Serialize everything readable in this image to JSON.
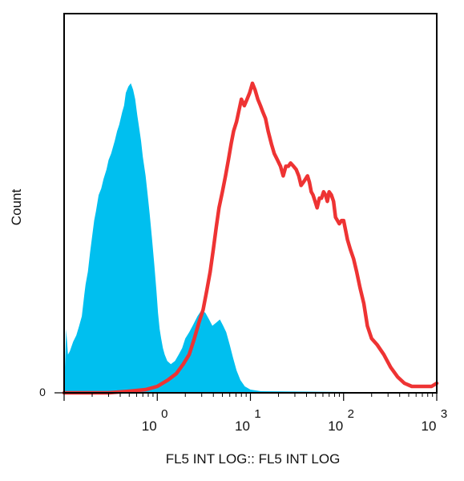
{
  "chart_data": {
    "type": "area",
    "title": "",
    "xlabel": "FL5 INT LOG:: FL5 INT LOG",
    "ylabel": "Count",
    "x_scale": "log",
    "xlim": [
      0.1,
      1000
    ],
    "ylim": [
      0,
      1
    ],
    "grid": false,
    "legend": "none",
    "x_ticks": [
      {
        "base": "10",
        "exp": "0",
        "value": 1
      },
      {
        "base": "10",
        "exp": "1",
        "value": 10
      },
      {
        "base": "10",
        "exp": "2",
        "value": 100
      },
      {
        "base": "10",
        "exp": "3",
        "value": 1000
      }
    ],
    "y_ticks": [
      {
        "label": "0",
        "value": 0
      }
    ],
    "series": [
      {
        "style": "filled",
        "color": "#00bfef",
        "points": [
          [
            0.1,
            0.0
          ],
          [
            0.105,
            0.2
          ],
          [
            0.11,
            0.12
          ],
          [
            0.115,
            0.13
          ],
          [
            0.125,
            0.16
          ],
          [
            0.135,
            0.18
          ],
          [
            0.145,
            0.21
          ],
          [
            0.155,
            0.24
          ],
          [
            0.165,
            0.31
          ],
          [
            0.17,
            0.34
          ],
          [
            0.18,
            0.38
          ],
          [
            0.19,
            0.44
          ],
          [
            0.21,
            0.54
          ],
          [
            0.22,
            0.57
          ],
          [
            0.235,
            0.62
          ],
          [
            0.25,
            0.64
          ],
          [
            0.265,
            0.67
          ],
          [
            0.285,
            0.7
          ],
          [
            0.3,
            0.73
          ],
          [
            0.32,
            0.75
          ],
          [
            0.35,
            0.79
          ],
          [
            0.37,
            0.82
          ],
          [
            0.39,
            0.84
          ],
          [
            0.42,
            0.88
          ],
          [
            0.44,
            0.9
          ],
          [
            0.46,
            0.94
          ],
          [
            0.49,
            0.96
          ],
          [
            0.52,
            0.97
          ],
          [
            0.55,
            0.95
          ],
          [
            0.58,
            0.92
          ],
          [
            0.61,
            0.87
          ],
          [
            0.64,
            0.83
          ],
          [
            0.67,
            0.79
          ],
          [
            0.7,
            0.74
          ],
          [
            0.75,
            0.68
          ],
          [
            0.79,
            0.62
          ],
          [
            0.83,
            0.56
          ],
          [
            0.88,
            0.48
          ],
          [
            0.93,
            0.4
          ],
          [
            0.98,
            0.32
          ],
          [
            1.02,
            0.25
          ],
          [
            1.06,
            0.2
          ],
          [
            1.1,
            0.17
          ],
          [
            1.15,
            0.14
          ],
          [
            1.2,
            0.12
          ],
          [
            1.28,
            0.1
          ],
          [
            1.4,
            0.09
          ],
          [
            1.55,
            0.1
          ],
          [
            1.7,
            0.12
          ],
          [
            1.85,
            0.14
          ],
          [
            2.0,
            0.17
          ],
          [
            2.2,
            0.19
          ],
          [
            2.4,
            0.21
          ],
          [
            2.7,
            0.24
          ],
          [
            3.0,
            0.26
          ],
          [
            3.3,
            0.25
          ],
          [
            3.6,
            0.23
          ],
          [
            3.9,
            0.21
          ],
          [
            4.3,
            0.22
          ],
          [
            4.7,
            0.23
          ],
          [
            5.1,
            0.21
          ],
          [
            5.5,
            0.19
          ],
          [
            6.0,
            0.15
          ],
          [
            6.5,
            0.11
          ],
          [
            7.1,
            0.07
          ],
          [
            7.8,
            0.04
          ],
          [
            8.7,
            0.02
          ],
          [
            10.0,
            0.01
          ],
          [
            13.0,
            0.005
          ],
          [
            1000,
            0.0
          ]
        ]
      },
      {
        "style": "line",
        "color": "#ee3333",
        "points": [
          [
            0.1,
            0.0
          ],
          [
            0.3,
            0.0
          ],
          [
            0.5,
            0.005
          ],
          [
            0.75,
            0.01
          ],
          [
            1.0,
            0.02
          ],
          [
            1.3,
            0.04
          ],
          [
            1.6,
            0.06
          ],
          [
            1.9,
            0.09
          ],
          [
            2.2,
            0.12
          ],
          [
            2.5,
            0.17
          ],
          [
            2.8,
            0.22
          ],
          [
            3.1,
            0.26
          ],
          [
            3.4,
            0.32
          ],
          [
            3.7,
            0.38
          ],
          [
            4.0,
            0.45
          ],
          [
            4.3,
            0.52
          ],
          [
            4.6,
            0.58
          ],
          [
            5.0,
            0.63
          ],
          [
            5.4,
            0.68
          ],
          [
            5.8,
            0.73
          ],
          [
            6.2,
            0.78
          ],
          [
            6.6,
            0.82
          ],
          [
            7.1,
            0.85
          ],
          [
            7.6,
            0.89
          ],
          [
            8.0,
            0.92
          ],
          [
            8.6,
            0.9
          ],
          [
            9.2,
            0.92
          ],
          [
            9.8,
            0.94
          ],
          [
            10.5,
            0.97
          ],
          [
            11.2,
            0.95
          ],
          [
            12.0,
            0.92
          ],
          [
            12.8,
            0.9
          ],
          [
            13.6,
            0.88
          ],
          [
            14.5,
            0.86
          ],
          [
            15.5,
            0.82
          ],
          [
            16.8,
            0.78
          ],
          [
            18.0,
            0.75
          ],
          [
            19.5,
            0.73
          ],
          [
            21.0,
            0.71
          ],
          [
            22.5,
            0.68
          ],
          [
            24.0,
            0.71
          ],
          [
            25.5,
            0.71
          ],
          [
            27.0,
            0.72
          ],
          [
            29.0,
            0.71
          ],
          [
            31.0,
            0.7
          ],
          [
            33.0,
            0.68
          ],
          [
            35.0,
            0.65
          ],
          [
            37.0,
            0.66
          ],
          [
            39.0,
            0.67
          ],
          [
            41.0,
            0.68
          ],
          [
            43.0,
            0.66
          ],
          [
            45.0,
            0.63
          ],
          [
            47.0,
            0.62
          ],
          [
            49.5,
            0.6
          ],
          [
            52.0,
            0.58
          ],
          [
            55.0,
            0.61
          ],
          [
            58.0,
            0.61
          ],
          [
            61.0,
            0.63
          ],
          [
            64.0,
            0.62
          ],
          [
            67.0,
            0.6
          ],
          [
            70.0,
            0.63
          ],
          [
            74.0,
            0.62
          ],
          [
            78.0,
            0.6
          ],
          [
            82.0,
            0.55
          ],
          [
            86.0,
            0.54
          ],
          [
            90.0,
            0.53
          ],
          [
            95.0,
            0.54
          ],
          [
            100.0,
            0.54
          ],
          [
            105.0,
            0.51
          ],
          [
            110.0,
            0.48
          ],
          [
            118.0,
            0.45
          ],
          [
            128.0,
            0.42
          ],
          [
            138.0,
            0.38
          ],
          [
            150.0,
            0.33
          ],
          [
            165.0,
            0.28
          ],
          [
            180.0,
            0.21
          ],
          [
            200.0,
            0.17
          ],
          [
            230.0,
            0.15
          ],
          [
            270.0,
            0.12
          ],
          [
            320.0,
            0.08
          ],
          [
            380.0,
            0.05
          ],
          [
            450.0,
            0.03
          ],
          [
            540.0,
            0.02
          ],
          [
            650.0,
            0.02
          ],
          [
            760.0,
            0.02
          ],
          [
            880.0,
            0.02
          ],
          [
            1000.0,
            0.03
          ]
        ]
      }
    ]
  }
}
